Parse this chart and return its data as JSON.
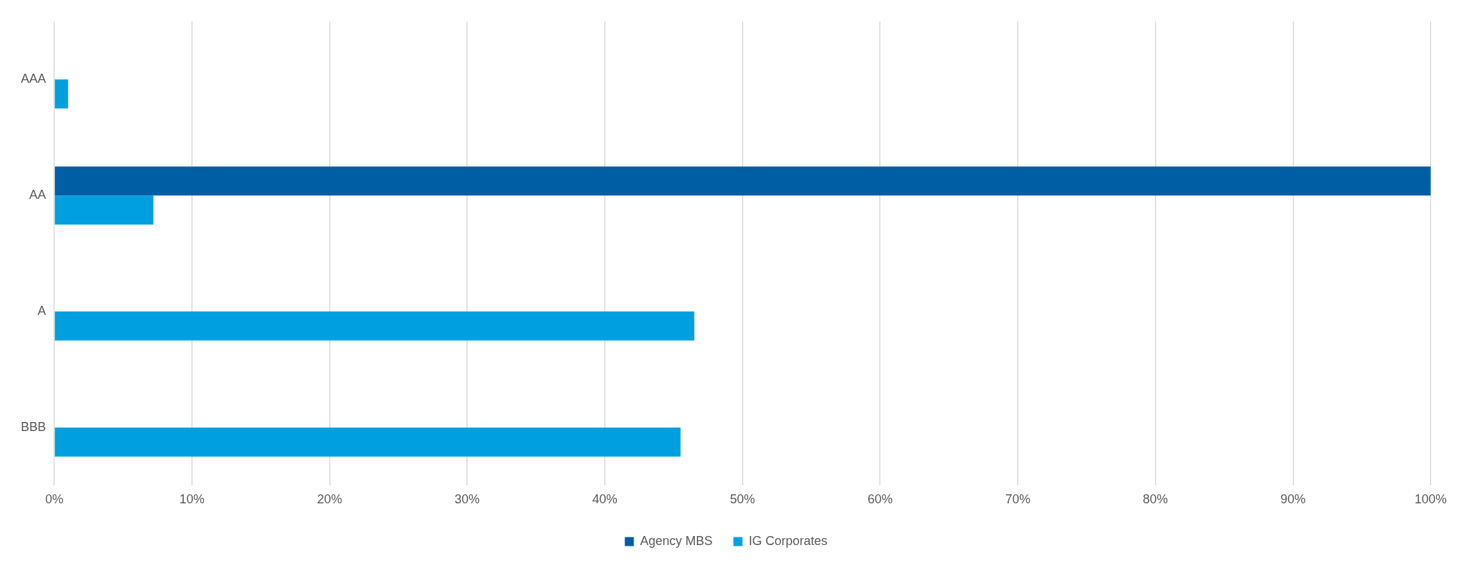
{
  "chart_data": {
    "type": "bar",
    "orientation": "horizontal",
    "categories": [
      "AAA",
      "AA",
      "A",
      "BBB"
    ],
    "series": [
      {
        "name": "Agency MBS",
        "color": "#005ea5",
        "values": [
          null,
          100,
          null,
          null
        ]
      },
      {
        "name": "IG Corporates",
        "color": "#00a0e0",
        "values": [
          1,
          7.2,
          46.5,
          45.5
        ]
      }
    ],
    "xlim": [
      0,
      100
    ],
    "xticks": [
      {
        "value": 0,
        "label": "0%"
      },
      {
        "value": 10,
        "label": "10%"
      },
      {
        "value": 20,
        "label": "20%"
      },
      {
        "value": 30,
        "label": "30%"
      },
      {
        "value": 40,
        "label": "40%"
      },
      {
        "value": 50,
        "label": "50%"
      },
      {
        "value": 60,
        "label": "60%"
      },
      {
        "value": 70,
        "label": "70%"
      },
      {
        "value": 80,
        "label": "80%"
      },
      {
        "value": 90,
        "label": "90%"
      },
      {
        "value": 100,
        "label": "100%"
      }
    ],
    "grid": "x",
    "legend": "bottom"
  }
}
